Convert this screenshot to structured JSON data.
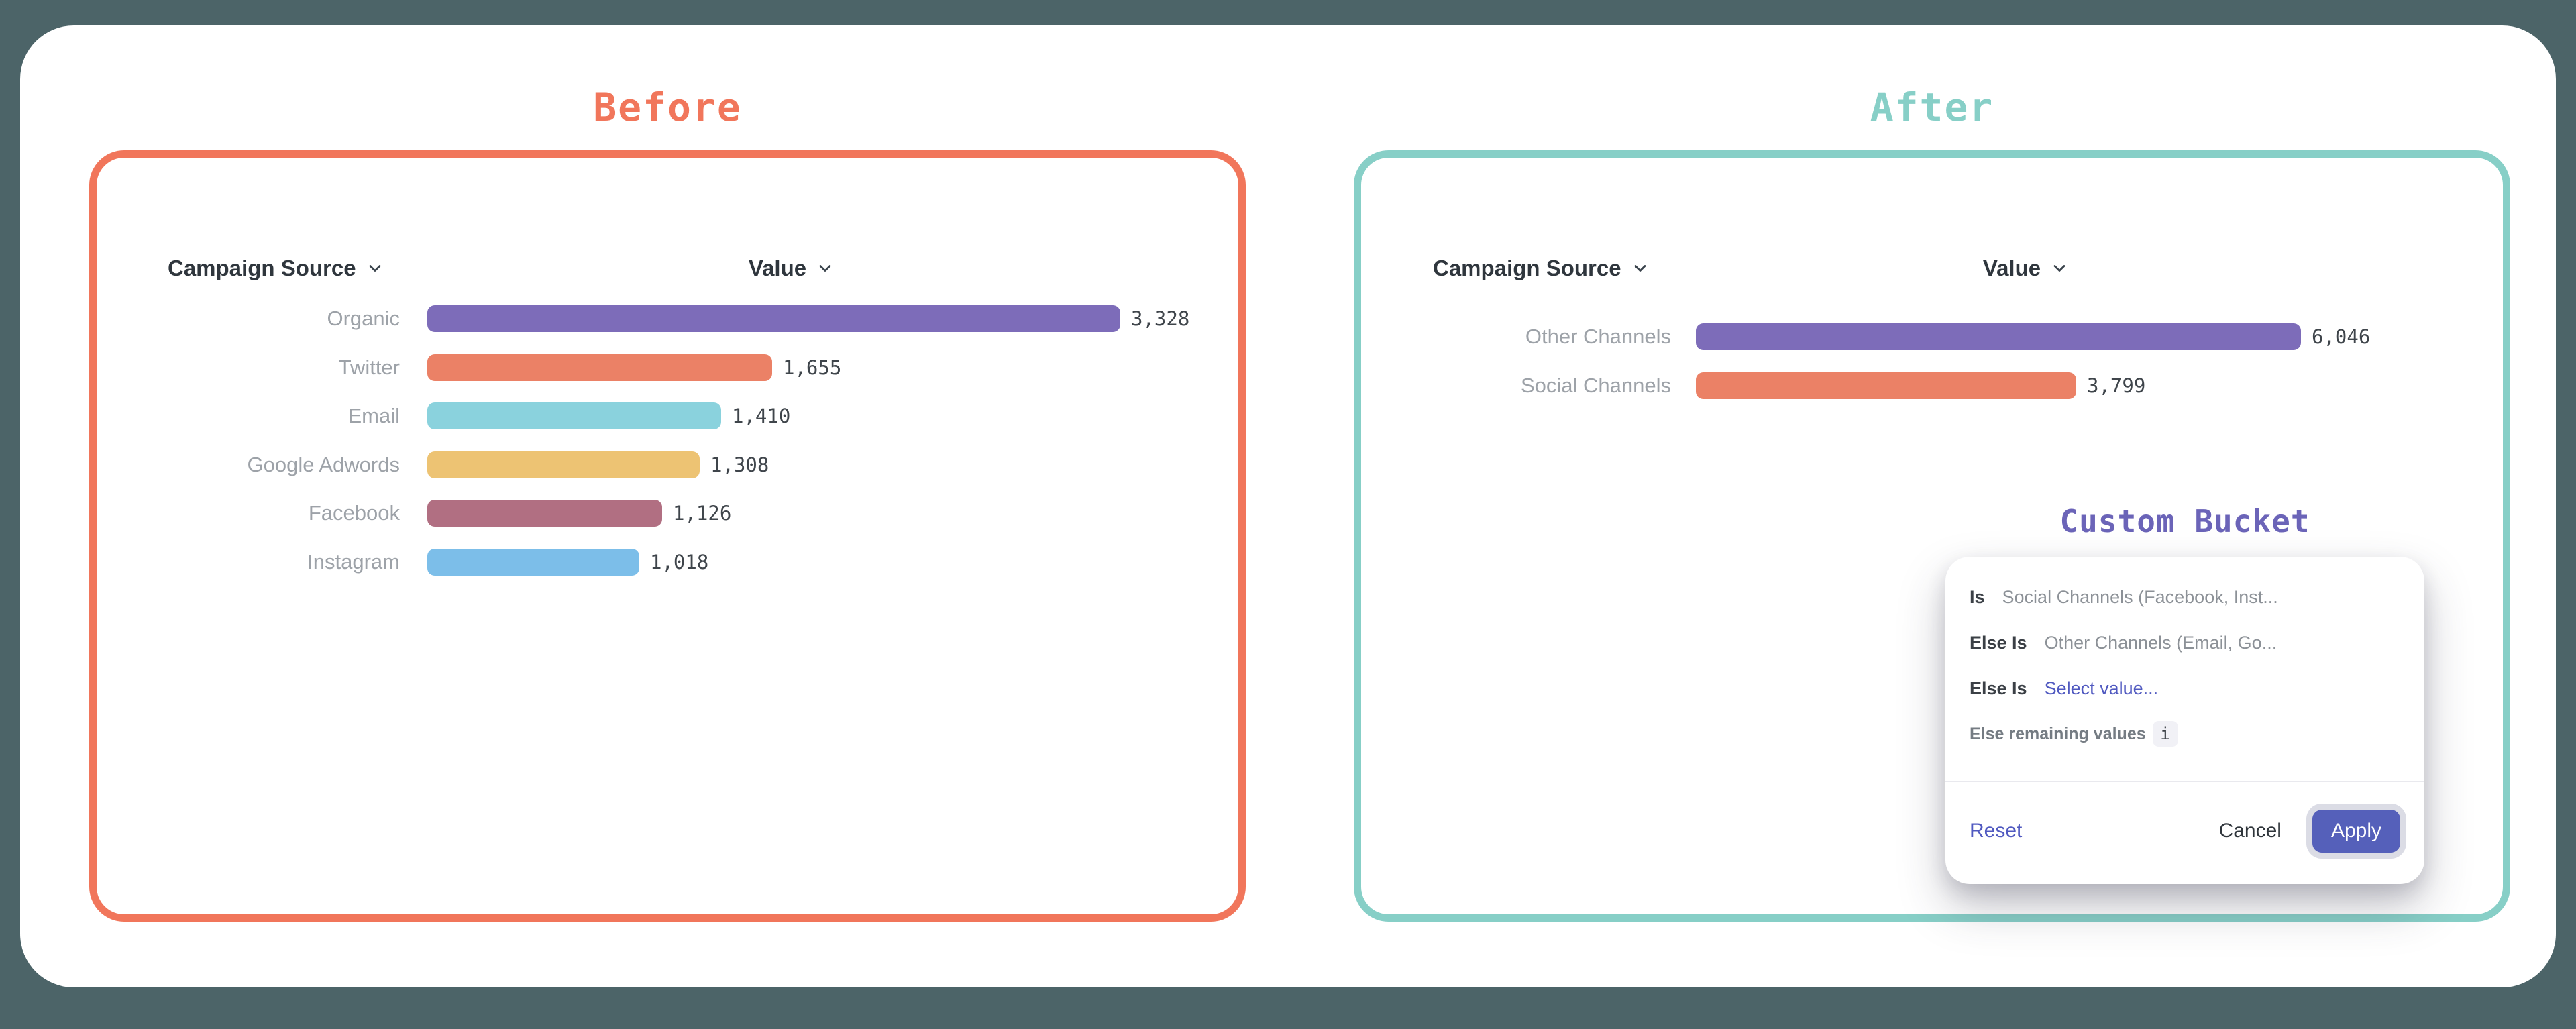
{
  "colors": {
    "background": "#4C6468",
    "before_accent": "#F1765B",
    "after_accent": "#87CFC7",
    "bucket_accent": "#6B64B8",
    "link": "#5059C0",
    "apply_bg": "#5560BA"
  },
  "before": {
    "title": "Before"
  },
  "after": {
    "title": "After"
  },
  "chart_data": [
    {
      "type": "bar",
      "panel": "Before",
      "orientation": "horizontal",
      "columns": [
        "Campaign Source",
        "Value"
      ],
      "categories": [
        "Organic",
        "Twitter",
        "Email",
        "Google Adwords",
        "Facebook",
        "Instagram"
      ],
      "values": [
        3328,
        1655,
        1410,
        1308,
        1126,
        1018
      ],
      "value_labels": [
        "3,328",
        "1,655",
        "1,410",
        "1,308",
        "1,126",
        "1,018"
      ],
      "bar_colors": [
        "#7D6CB9",
        "#EB8166",
        "#8AD2DD",
        "#EDC373",
        "#B16F82",
        "#7CBEE9"
      ],
      "xlim": [
        0,
        3328
      ],
      "grid": false,
      "legend": false
    },
    {
      "type": "bar",
      "panel": "After",
      "orientation": "horizontal",
      "columns": [
        "Campaign Source",
        "Value"
      ],
      "categories": [
        "Other Channels",
        "Social Channels"
      ],
      "values": [
        6046,
        3799
      ],
      "value_labels": [
        "6,046",
        "3,799"
      ],
      "bar_colors": [
        "#7D6CB9",
        "#EB8166"
      ],
      "xlim": [
        0,
        6046
      ],
      "grid": false,
      "legend": false
    }
  ],
  "custom_bucket": {
    "title": "Custom Bucket",
    "rows": [
      {
        "condition": "Is",
        "value": "Social Channels (Facebook, Inst..."
      },
      {
        "condition": "Else Is",
        "value": "Other Channels (Email, Go..."
      },
      {
        "condition": "Else Is",
        "value": "Select value...",
        "style": "link"
      },
      {
        "condition": "Else remaining values",
        "value": "",
        "info": true
      }
    ],
    "info_icon": "i",
    "footer": {
      "reset": "Reset",
      "cancel": "Cancel",
      "apply": "Apply"
    }
  }
}
